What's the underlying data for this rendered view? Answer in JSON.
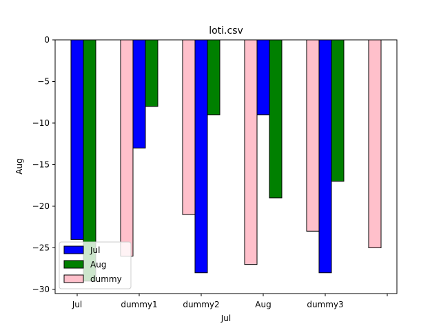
{
  "chart_data": {
    "type": "bar",
    "title": "loti.csv",
    "xlabel": "Jul",
    "ylabel": "Aug",
    "categories": [
      "Jul",
      "dummy1",
      "dummy2",
      "Aug",
      "dummy3",
      ""
    ],
    "series": [
      {
        "name": "Jul",
        "color": "#0000ff",
        "values": [
          -24,
          -13,
          -28,
          -9,
          -28,
          null
        ]
      },
      {
        "name": "Aug",
        "color": "#008000",
        "values": [
          -29,
          -8,
          -9,
          -19,
          -17,
          null
        ]
      },
      {
        "name": "dummy",
        "color": "#ffc0cb",
        "values": [
          null,
          -26,
          -21,
          -27,
          -23,
          -25
        ]
      }
    ],
    "ylim": [
      -30.5,
      0
    ],
    "yticks": [
      0,
      -5,
      -10,
      -15,
      -20,
      -25,
      -30
    ],
    "legend": {
      "placement": "lower-left"
    },
    "grid": false
  }
}
